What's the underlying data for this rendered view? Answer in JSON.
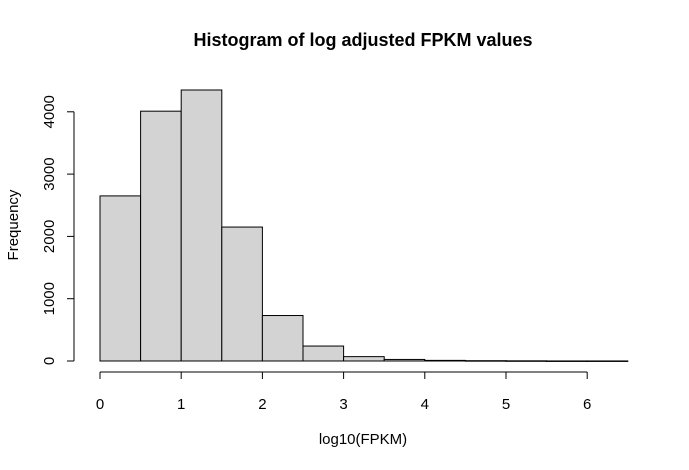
{
  "chart_data": {
    "type": "bar",
    "title": "Histogram of log adjusted FPKM values",
    "xlabel": "log10(FPKM)",
    "ylabel": "Frequency",
    "bins": [
      {
        "x0": 0.0,
        "x1": 0.5,
        "count": 2650
      },
      {
        "x0": 0.5,
        "x1": 1.0,
        "count": 4010
      },
      {
        "x0": 1.0,
        "x1": 1.5,
        "count": 4350
      },
      {
        "x0": 1.5,
        "x1": 2.0,
        "count": 2150
      },
      {
        "x0": 2.0,
        "x1": 2.5,
        "count": 730
      },
      {
        "x0": 2.5,
        "x1": 3.0,
        "count": 240
      },
      {
        "x0": 3.0,
        "x1": 3.5,
        "count": 70
      },
      {
        "x0": 3.5,
        "x1": 4.0,
        "count": 25
      },
      {
        "x0": 4.0,
        "x1": 4.5,
        "count": 10
      },
      {
        "x0": 4.5,
        "x1": 5.0,
        "count": 5
      },
      {
        "x0": 5.0,
        "x1": 5.5,
        "count": 3
      },
      {
        "x0": 5.5,
        "x1": 6.0,
        "count": 1
      },
      {
        "x0": 6.0,
        "x1": 6.5,
        "count": 1
      }
    ],
    "xlim": [
      0,
      6.5
    ],
    "ylim": [
      0,
      4000
    ],
    "xticks": [
      "0",
      "1",
      "2",
      "3",
      "4",
      "5",
      "6"
    ],
    "yticks": [
      "0",
      "1000",
      "2000",
      "3000",
      "4000"
    ],
    "grid": false,
    "colors": {
      "bar_fill": "#d3d3d3",
      "bar_stroke": "#000000"
    }
  }
}
